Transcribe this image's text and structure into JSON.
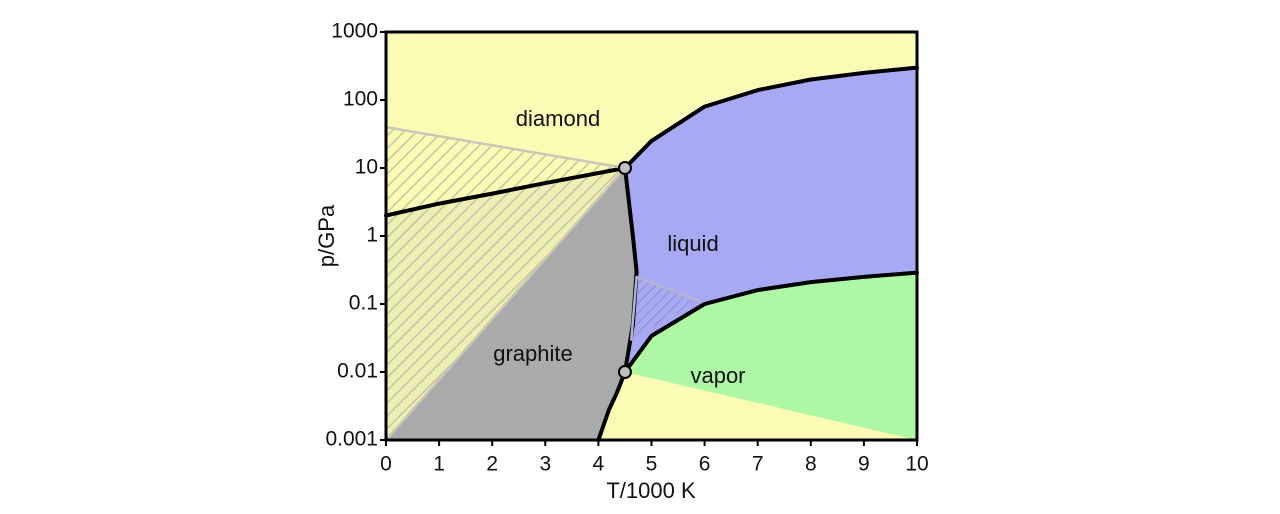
{
  "chart_data": {
    "type": "phase-diagram",
    "xlabel": "T/1000  K",
    "ylabel": "p/GPa",
    "xlim": [
      0,
      10
    ],
    "ylim": [
      0.001,
      1000
    ],
    "ylog": true,
    "grid": false,
    "xticks": [
      0,
      1,
      2,
      3,
      4,
      5,
      6,
      7,
      8,
      9,
      10
    ],
    "yticks": [
      0.001,
      0.01,
      0.1,
      1,
      10,
      100,
      1000
    ],
    "regions": [
      {
        "label": "diamond",
        "color": "#fafbb4"
      },
      {
        "label": "graphite",
        "color": "#aaaaaa"
      },
      {
        "label": "liquid",
        "color": "#a7aaf2"
      },
      {
        "label": "vapor",
        "color": "#aef7a4"
      }
    ],
    "lines": [
      {
        "color": "#000000",
        "x": [
          0,
          1,
          2,
          3,
          4.5
        ],
        "values": [
          2,
          3,
          4.2,
          6,
          10
        ]
      },
      {
        "color": "#000000",
        "x": [
          4.5,
          4.65,
          4.72,
          4.65,
          4.5
        ],
        "values": [
          10,
          1,
          0.3,
          0.05,
          0.01
        ]
      },
      {
        "color": "#000000",
        "x": [
          4.5,
          5,
          6,
          7,
          8,
          9,
          10
        ],
        "values": [
          10,
          25,
          80,
          140,
          200,
          250,
          300
        ]
      },
      {
        "color": "#000000",
        "x": [
          4.5,
          5,
          6,
          7,
          8,
          9,
          10
        ],
        "values": [
          0.01,
          0.034,
          0.1,
          0.16,
          0.21,
          0.25,
          0.29
        ]
      },
      {
        "color": "#000000",
        "x": [
          4,
          4.2,
          4.35,
          4.5
        ],
        "values": [
          0.001,
          0.0028,
          0.005,
          0.01
        ]
      },
      {
        "color": "#c8c8b4",
        "x": [
          0,
          4.5
        ],
        "values": [
          40,
          10
        ]
      },
      {
        "color": "#c8c8b4",
        "x": [
          0,
          4.5
        ],
        "values": [
          0.001,
          10
        ]
      },
      {
        "color": "#b4b4d2",
        "x": [
          4.62,
          4.72,
          5.9
        ],
        "values": [
          0.03,
          0.25,
          0.11
        ]
      }
    ],
    "points": {
      "color": "#c0c0c0",
      "x": [
        4.5,
        4.5
      ],
      "values": [
        10,
        0.01
      ]
    }
  }
}
